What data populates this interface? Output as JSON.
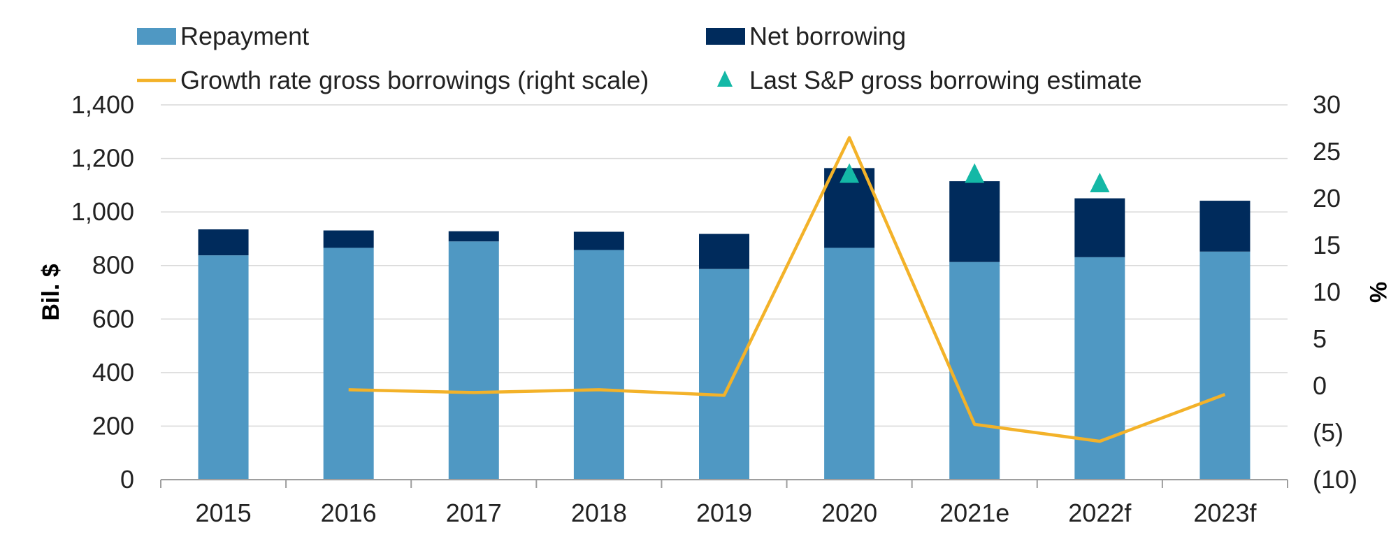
{
  "chart_data": {
    "type": "bar",
    "categories": [
      "2015",
      "2016",
      "2017",
      "2018",
      "2019",
      "2020",
      "2021e",
      "2022f",
      "2023f"
    ],
    "series": [
      {
        "name": "Repayment",
        "kind": "stacked-bar",
        "axis": "left",
        "color": "#4f98c3",
        "values": [
          838,
          866,
          890,
          858,
          787,
          866,
          813,
          831,
          852
        ]
      },
      {
        "name": "Net borrowing",
        "kind": "stacked-bar",
        "axis": "left",
        "color": "#002b5c",
        "values": [
          97,
          65,
          38,
          68,
          131,
          298,
          302,
          220,
          190
        ]
      },
      {
        "name": "Growth rate gross borrowings (right scale)",
        "kind": "line",
        "axis": "right",
        "color": "#f3b229",
        "values": [
          null,
          -0.4,
          -0.7,
          -0.4,
          -1.0,
          26.5,
          -4.1,
          -5.9,
          -0.9
        ]
      },
      {
        "name": "Last S&P gross borrowing estimate",
        "kind": "marker",
        "marker": "triangle",
        "axis": "left",
        "color": "#14b8a6",
        "values": [
          null,
          null,
          null,
          null,
          null,
          1140,
          1140,
          1105,
          null
        ]
      }
    ],
    "ylabel": "Bil. $",
    "ylim": [
      0,
      1400
    ],
    "yticks": [
      0,
      200,
      400,
      600,
      800,
      1000,
      1200,
      1400
    ],
    "ytick_labels": [
      "0",
      "200",
      "400",
      "600",
      "800",
      "1,000",
      "1,200",
      "1,400"
    ],
    "y2label": "%",
    "y2lim": [
      -10,
      30
    ],
    "y2ticks": [
      -10,
      -5,
      0,
      5,
      10,
      15,
      20,
      25,
      30
    ],
    "y2tick_labels": [
      "(10)",
      "(5)",
      "0",
      "5",
      "10",
      "15",
      "20",
      "25",
      "30"
    ],
    "grid": true,
    "legend_position": "top"
  }
}
